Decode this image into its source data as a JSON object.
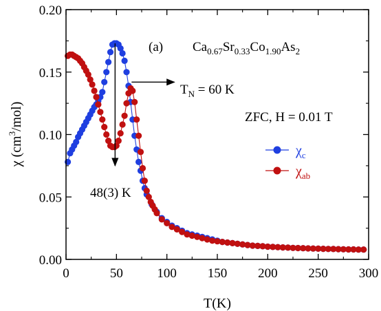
{
  "chart_data": {
    "type": "scatter",
    "panel_label": "(a)",
    "compound": {
      "parts": [
        {
          "t": "Ca",
          "s": "0.67"
        },
        {
          "t": "Sr",
          "s": "0.33"
        },
        {
          "t": "Co",
          "s": "1.90"
        },
        {
          "t": "As",
          "s": "2"
        }
      ]
    },
    "xlabel": "T(K)",
    "ylabel": {
      "pre": "χ (cm",
      "sup": "3",
      "post": "/mol)"
    },
    "xlim": [
      0,
      300
    ],
    "ylim": [
      0,
      0.2
    ],
    "xticks": [
      {
        "v": 0,
        "label": "0"
      },
      {
        "v": 50,
        "label": "50"
      },
      {
        "v": 100,
        "label": "100"
      },
      {
        "v": 150,
        "label": "150"
      },
      {
        "v": 200,
        "label": "200"
      },
      {
        "v": 250,
        "label": "250"
      },
      {
        "v": 300,
        "label": "300"
      }
    ],
    "yticks": [
      {
        "v": 0,
        "label": "0.00"
      },
      {
        "v": 0.05,
        "label": "0.05"
      },
      {
        "v": 0.1,
        "label": "0.10"
      },
      {
        "v": 0.15,
        "label": "0.15"
      },
      {
        "v": 0.2,
        "label": "0.20"
      }
    ],
    "condition": "ZFC, H = 0.01 T",
    "annotations": {
      "tn": {
        "main": "T",
        "sub": "N",
        "rest": " = 60 K",
        "x_point": 65,
        "y_point": 0.137,
        "x_arrow_end": 104
      },
      "peak": {
        "label": "48(3) K",
        "x": 50,
        "y_top": 0.173,
        "y_bottom": 0.075
      }
    },
    "series": [
      {
        "name": {
          "main": "χ",
          "sub": "c"
        },
        "color": "#1f3fe0",
        "points": [
          [
            1.8,
            0.078
          ],
          [
            4,
            0.085
          ],
          [
            6,
            0.088
          ],
          [
            8,
            0.091
          ],
          [
            10,
            0.094
          ],
          [
            12,
            0.098
          ],
          [
            14,
            0.101
          ],
          [
            16,
            0.104
          ],
          [
            18,
            0.107
          ],
          [
            20,
            0.11
          ],
          [
            22,
            0.113
          ],
          [
            24,
            0.116
          ],
          [
            26,
            0.119
          ],
          [
            28,
            0.122
          ],
          [
            30,
            0.124
          ],
          [
            32,
            0.127
          ],
          [
            34,
            0.13
          ],
          [
            36,
            0.134
          ],
          [
            38,
            0.142
          ],
          [
            40,
            0.15
          ],
          [
            42,
            0.158
          ],
          [
            44,
            0.166
          ],
          [
            46,
            0.172
          ],
          [
            48,
            0.173
          ],
          [
            50,
            0.173
          ],
          [
            52,
            0.172
          ],
          [
            54,
            0.169
          ],
          [
            56,
            0.165
          ],
          [
            58,
            0.159
          ],
          [
            60,
            0.15
          ],
          [
            62,
            0.139
          ],
          [
            64,
            0.126
          ],
          [
            66,
            0.112
          ],
          [
            68,
            0.099
          ],
          [
            70,
            0.088
          ],
          [
            72,
            0.078
          ],
          [
            74,
            0.071
          ],
          [
            76,
            0.063
          ],
          [
            78,
            0.057
          ],
          [
            80,
            0.052
          ],
          [
            85,
            0.044
          ],
          [
            90,
            0.038
          ],
          [
            95,
            0.033
          ],
          [
            100,
            0.03
          ],
          [
            105,
            0.027
          ],
          [
            110,
            0.025
          ],
          [
            115,
            0.023
          ],
          [
            120,
            0.021
          ],
          [
            125,
            0.02
          ],
          [
            130,
            0.019
          ],
          [
            135,
            0.018
          ],
          [
            140,
            0.017
          ],
          [
            145,
            0.016
          ],
          [
            150,
            0.015
          ],
          [
            155,
            0.014
          ],
          [
            160,
            0.0135
          ],
          [
            165,
            0.013
          ],
          [
            170,
            0.0125
          ],
          [
            175,
            0.012
          ],
          [
            180,
            0.0115
          ],
          [
            185,
            0.011
          ],
          [
            190,
            0.0108
          ],
          [
            195,
            0.0105
          ],
          [
            200,
            0.0102
          ],
          [
            205,
            0.01
          ],
          [
            210,
            0.0098
          ],
          [
            215,
            0.0096
          ],
          [
            220,
            0.0094
          ],
          [
            225,
            0.0092
          ],
          [
            230,
            0.0091
          ],
          [
            235,
            0.009
          ],
          [
            240,
            0.0088
          ],
          [
            245,
            0.0087
          ],
          [
            250,
            0.0086
          ],
          [
            255,
            0.0085
          ],
          [
            260,
            0.0084
          ],
          [
            265,
            0.0083
          ],
          [
            270,
            0.0082
          ],
          [
            275,
            0.0081
          ],
          [
            280,
            0.008
          ],
          [
            285,
            0.008
          ],
          [
            290,
            0.0079
          ],
          [
            295,
            0.0079
          ]
        ]
      },
      {
        "name": {
          "main": "χ",
          "sub": "ab"
        },
        "color": "#c01010",
        "points": [
          [
            1.8,
            0.163
          ],
          [
            4,
            0.164
          ],
          [
            6,
            0.164
          ],
          [
            8,
            0.163
          ],
          [
            10,
            0.162
          ],
          [
            12,
            0.161
          ],
          [
            14,
            0.159
          ],
          [
            16,
            0.157
          ],
          [
            18,
            0.154
          ],
          [
            20,
            0.151
          ],
          [
            22,
            0.148
          ],
          [
            24,
            0.144
          ],
          [
            26,
            0.14
          ],
          [
            28,
            0.135
          ],
          [
            30,
            0.13
          ],
          [
            32,
            0.124
          ],
          [
            34,
            0.118
          ],
          [
            36,
            0.112
          ],
          [
            38,
            0.106
          ],
          [
            40,
            0.1
          ],
          [
            42,
            0.095
          ],
          [
            44,
            0.091
          ],
          [
            46,
            0.09
          ],
          [
            48,
            0.09
          ],
          [
            50,
            0.091
          ],
          [
            52,
            0.095
          ],
          [
            54,
            0.101
          ],
          [
            56,
            0.108
          ],
          [
            58,
            0.115
          ],
          [
            60,
            0.125
          ],
          [
            62,
            0.133
          ],
          [
            64,
            0.137
          ],
          [
            66,
            0.135
          ],
          [
            68,
            0.126
          ],
          [
            70,
            0.112
          ],
          [
            72,
            0.099
          ],
          [
            74,
            0.086
          ],
          [
            76,
            0.073
          ],
          [
            78,
            0.063
          ],
          [
            80,
            0.055
          ],
          [
            82,
            0.05
          ],
          [
            84,
            0.046
          ],
          [
            86,
            0.043
          ],
          [
            88,
            0.04
          ],
          [
            90,
            0.037
          ],
          [
            95,
            0.032
          ],
          [
            100,
            0.029
          ],
          [
            105,
            0.026
          ],
          [
            110,
            0.024
          ],
          [
            115,
            0.022
          ],
          [
            120,
            0.02
          ],
          [
            125,
            0.019
          ],
          [
            130,
            0.018
          ],
          [
            135,
            0.017
          ],
          [
            140,
            0.016
          ],
          [
            145,
            0.015
          ],
          [
            150,
            0.0145
          ],
          [
            155,
            0.014
          ],
          [
            160,
            0.0135
          ],
          [
            165,
            0.013
          ],
          [
            170,
            0.0125
          ],
          [
            175,
            0.012
          ],
          [
            180,
            0.0115
          ],
          [
            185,
            0.011
          ],
          [
            190,
            0.0108
          ],
          [
            195,
            0.0105
          ],
          [
            200,
            0.0102
          ],
          [
            205,
            0.01
          ],
          [
            210,
            0.0098
          ],
          [
            215,
            0.0096
          ],
          [
            220,
            0.0094
          ],
          [
            225,
            0.0092
          ],
          [
            230,
            0.0091
          ],
          [
            235,
            0.009
          ],
          [
            240,
            0.0088
          ],
          [
            245,
            0.0087
          ],
          [
            250,
            0.0086
          ],
          [
            255,
            0.0085
          ],
          [
            260,
            0.0084
          ],
          [
            265,
            0.0083
          ],
          [
            270,
            0.0082
          ],
          [
            275,
            0.0081
          ],
          [
            280,
            0.008
          ],
          [
            285,
            0.008
          ],
          [
            290,
            0.0079
          ],
          [
            295,
            0.0079
          ]
        ]
      }
    ]
  }
}
